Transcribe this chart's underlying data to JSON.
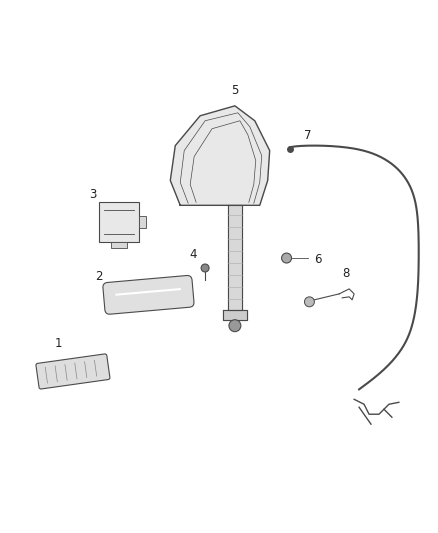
{
  "background_color": "#ffffff",
  "fig_width": 4.38,
  "fig_height": 5.33,
  "dpi": 100,
  "line_color": "#4a4a4a",
  "label_color": "#222222",
  "label_fontsize": 8.5
}
